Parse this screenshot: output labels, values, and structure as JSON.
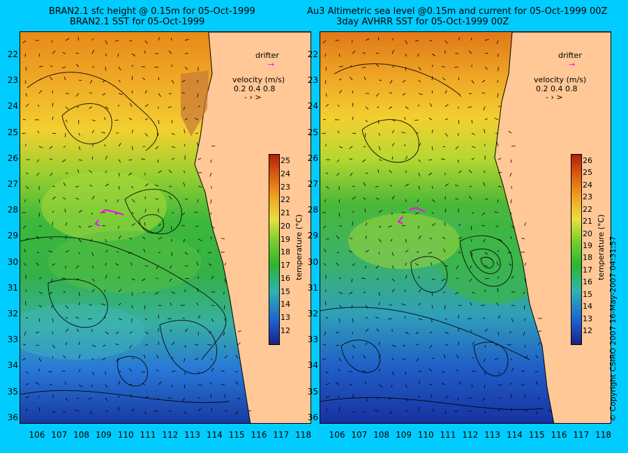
{
  "left_panel": {
    "title_line1": "BRAN2.1 sfc height @ 0.15m for 05-Oct-1999",
    "title_line2": "BRAN2.1 SST for 05-Oct-1999"
  },
  "right_panel": {
    "title_line1": "Au3 Altimetric sea level  @0.15m and current for 05-Oct-1999 00Z",
    "title_line2": "3day AVHRR SST for 05-Oct-1999 00Z"
  },
  "legend": {
    "drifter_label": "drifter",
    "velocity_label": "velocity (m/s)",
    "velocity_scale": "0.2 0.4 0.8"
  },
  "colorbar": {
    "label": "temperature (°C)",
    "ticks": [
      "12",
      "13",
      "14",
      "15",
      "16",
      "17",
      "18",
      "19",
      "20",
      "21",
      "22",
      "23",
      "24",
      "25"
    ],
    "ticks_right": [
      "12",
      "13",
      "14",
      "15",
      "16",
      "17",
      "18",
      "19",
      "20",
      "21",
      "22",
      "23",
      "24",
      "25",
      "26"
    ]
  },
  "latitudes": [
    "22",
    "23",
    "24",
    "25",
    "26",
    "27",
    "28",
    "29",
    "30",
    "31",
    "32",
    "33",
    "34",
    "35",
    "36"
  ],
  "longitudes": [
    "106",
    "107",
    "108",
    "109",
    "110",
    "111",
    "112",
    "113",
    "114",
    "115",
    "116",
    "117",
    "118"
  ],
  "copyright": "© Copyright CSIRO 2007   16-May-2007 04:31:57",
  "colors": {
    "background": "#00ccff",
    "land": "#ffc896",
    "drifter": "#ff00ff"
  }
}
